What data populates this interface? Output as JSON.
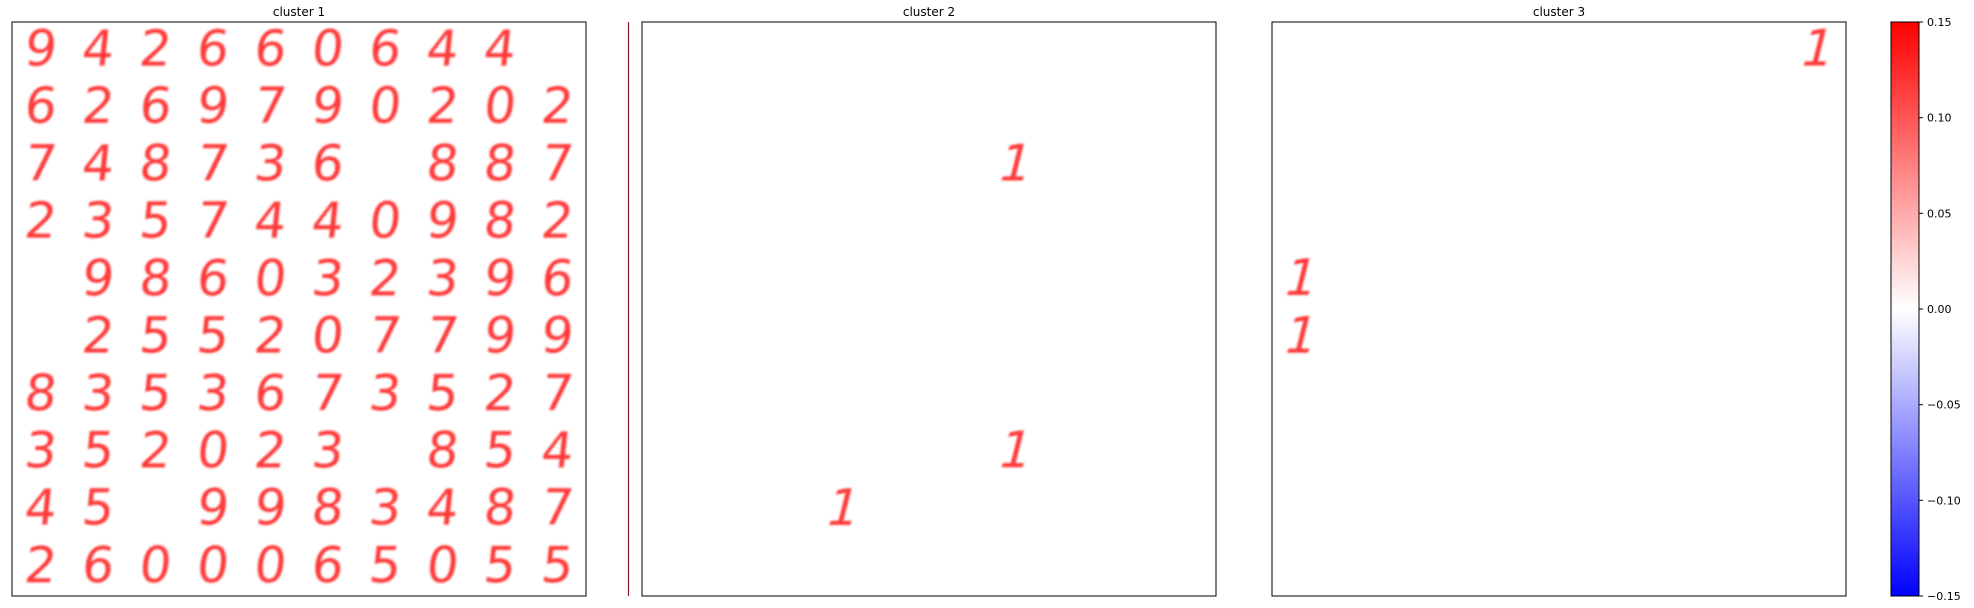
{
  "chart_data": [
    {
      "type": "heatmap",
      "title": "cluster 1",
      "grid": "10x10",
      "cells": [
        "9",
        "4",
        "2",
        "6",
        "6",
        "0",
        "6",
        "4",
        "4",
        "",
        "6",
        "2",
        "6",
        "9",
        "7",
        "9",
        "0",
        "2",
        "0",
        "2",
        "7",
        "4",
        "8",
        "7",
        "3",
        "6",
        "",
        "8",
        "8",
        "7",
        "2",
        "3",
        "5",
        "7",
        "4",
        "4",
        "0",
        "9",
        "8",
        "2",
        "",
        "9",
        "8",
        "6",
        "0",
        "3",
        "2",
        "3",
        "9",
        "6",
        "",
        "2",
        "5",
        "5",
        "2",
        "0",
        "7",
        "7",
        "9",
        "9",
        "8",
        "3",
        "5",
        "3",
        "6",
        "7",
        "3",
        "5",
        "2",
        "7",
        "3",
        "5",
        "2",
        "0",
        "2",
        "3",
        "",
        "8",
        "5",
        "4",
        "4",
        "5",
        "",
        "9",
        "9",
        "8",
        "3",
        "4",
        "8",
        "7",
        "2",
        "6",
        "0",
        "0",
        "0",
        "6",
        "5",
        "0",
        "5",
        "5"
      ]
    },
    {
      "type": "heatmap",
      "title": "cluster 2",
      "grid": "10x10",
      "cells": [
        "",
        "",
        "",
        "",
        "",
        "",
        "",
        "",
        "",
        "",
        "",
        "",
        "",
        "",
        "",
        "",
        "",
        "",
        "",
        "",
        "",
        "",
        "",
        "",
        "",
        "",
        "1",
        "",
        "",
        "",
        "",
        "",
        "",
        "",
        "",
        "",
        "",
        "",
        "",
        "",
        "",
        "",
        "",
        "",
        "",
        "",
        "",
        "",
        "",
        "",
        "",
        "",
        "",
        "",
        "",
        "",
        "",
        "",
        "",
        "",
        "",
        "",
        "",
        "",
        "",
        "",
        "",
        "",
        "",
        "",
        "",
        "",
        "",
        "",
        "",
        "",
        "1",
        "",
        "",
        "",
        "",
        "",
        "",
        "1",
        "",
        "",
        "",
        "",
        "",
        "",
        "",
        "",
        "",
        "",
        "",
        "",
        "",
        "",
        "",
        ""
      ]
    },
    {
      "type": "heatmap",
      "title": "cluster 3",
      "grid": "10x10",
      "cells": [
        "",
        "",
        "",
        "",
        "",
        "",
        "",
        "",
        "",
        "1",
        "",
        "",
        "",
        "",
        "",
        "",
        "",
        "",
        "",
        "",
        "",
        "",
        "",
        "",
        "",
        "",
        "",
        "",
        "",
        "",
        "",
        "",
        "",
        "",
        "",
        "",
        "",
        "",
        "",
        "",
        "1",
        "",
        "",
        "",
        "",
        "",
        "",
        "",
        "",
        "",
        "1",
        "",
        "",
        "",
        "",
        "",
        "",
        "",
        "",
        "",
        "",
        "",
        "",
        "",
        "",
        "",
        "",
        "",
        "",
        "",
        "",
        "",
        "",
        "",
        "",
        "",
        "",
        "",
        "",
        "",
        "",
        "",
        "",
        "",
        "",
        "",
        "",
        "",
        "",
        "",
        "",
        "",
        "",
        "",
        "",
        "",
        "",
        "",
        "",
        ""
      ]
    }
  ],
  "colorbar": {
    "colormap": "bwr",
    "range": [
      -0.15,
      0.15
    ],
    "ticks": [
      "0.15",
      "0.10",
      "0.05",
      "0.00",
      "−0.05",
      "−0.10",
      "−0.15"
    ],
    "tick_values": [
      0.15,
      0.1,
      0.05,
      0.0,
      -0.05,
      -0.1,
      -0.15
    ]
  },
  "colors": {
    "glyph": "#ff2222",
    "frame": "#000000",
    "divider": "#8b1a2b"
  }
}
